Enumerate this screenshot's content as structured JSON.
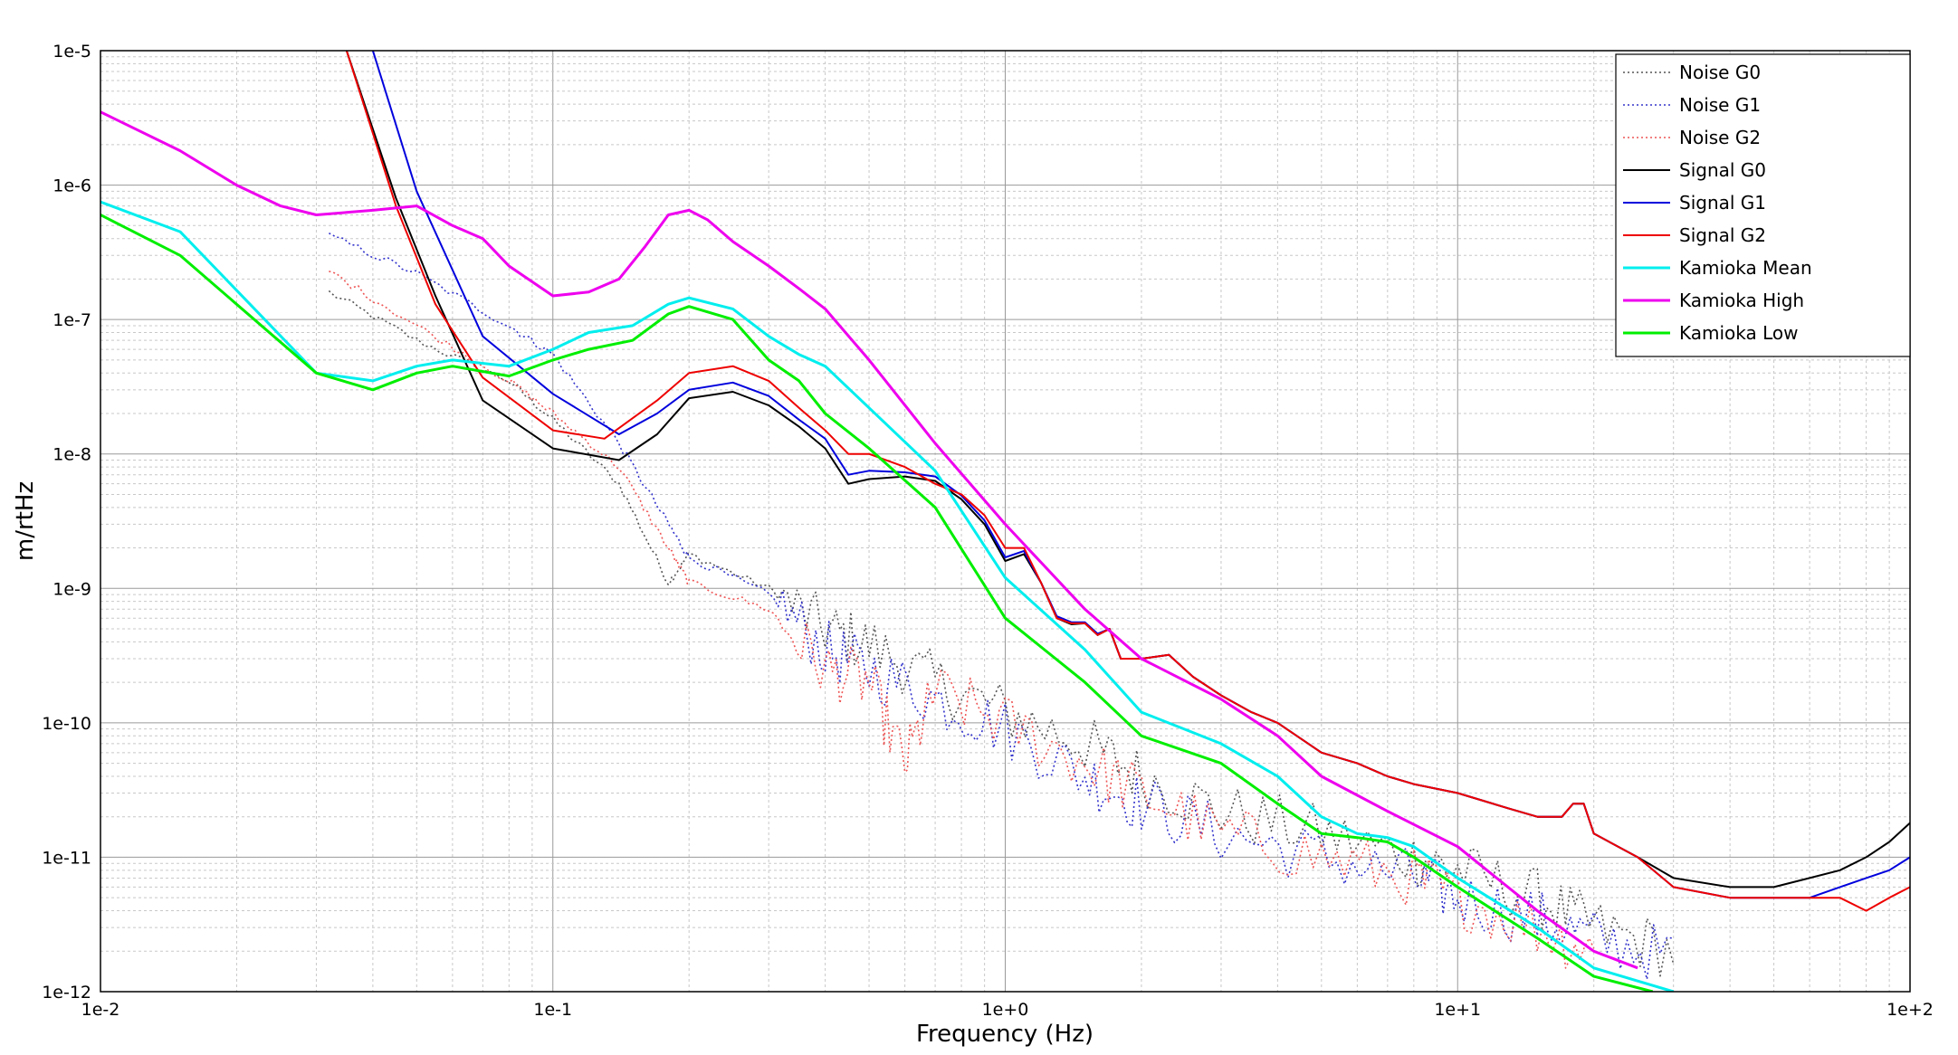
{
  "chart_data": {
    "type": "line",
    "title": "",
    "xlabel": "Frequency (Hz)",
    "ylabel": "m/rtHz",
    "xscale": "log",
    "yscale": "log",
    "xlim": [
      0.01,
      100
    ],
    "ylim": [
      1e-12,
      1e-05
    ],
    "grid": true,
    "legend_position": "top-right",
    "x_ticks": [
      {
        "value": 0.01,
        "label": "1e-2"
      },
      {
        "value": 0.1,
        "label": "1e-1"
      },
      {
        "value": 1,
        "label": "1e+0"
      },
      {
        "value": 10,
        "label": "1e+1"
      },
      {
        "value": 100,
        "label": "1e+2"
      }
    ],
    "y_ticks": [
      {
        "value": 1e-12,
        "label": "1e-12"
      },
      {
        "value": 1e-11,
        "label": "1e-11"
      },
      {
        "value": 1e-10,
        "label": "1e-10"
      },
      {
        "value": 1e-09,
        "label": "1e-9"
      },
      {
        "value": 1e-08,
        "label": "1e-8"
      },
      {
        "value": 1e-07,
        "label": "1e-7"
      },
      {
        "value": 1e-06,
        "label": "1e-6"
      },
      {
        "value": 1e-05,
        "label": "1e-5"
      }
    ],
    "series": [
      {
        "name": "Noise G0",
        "color": "#555555",
        "style": "dotted",
        "noisy": true,
        "x": [
          0.032,
          0.05,
          0.08,
          0.1,
          0.14,
          0.18,
          0.2,
          0.3,
          0.4,
          0.5,
          0.7,
          1,
          1.5,
          2,
          3,
          5,
          8,
          10,
          15,
          20,
          30
        ],
        "y": [
          1.6e-07,
          7e-08,
          3.5e-08,
          1.8e-08,
          6e-09,
          1.1e-09,
          1.8e-09,
          1e-09,
          5e-10,
          3.8e-10,
          2e-10,
          1.2e-10,
          7e-11,
          4e-11,
          2.2e-11,
          1.5e-11,
          1e-11,
          8e-12,
          5e-12,
          3e-12,
          2e-12
        ]
      },
      {
        "name": "Noise G1",
        "color": "#3333cc",
        "style": "dotted",
        "noisy": true,
        "x": [
          0.032,
          0.05,
          0.08,
          0.1,
          0.14,
          0.18,
          0.2,
          0.3,
          0.4,
          0.5,
          0.7,
          1,
          1.5,
          2,
          3,
          5,
          8,
          10,
          15,
          20,
          30
        ],
        "y": [
          4.2e-07,
          2.2e-07,
          9e-08,
          5.5e-08,
          1.2e-08,
          3e-09,
          1.7e-09,
          9e-10,
          3.5e-10,
          2.5e-10,
          1.5e-10,
          9e-11,
          4e-11,
          2.5e-11,
          1.5e-11,
          1e-11,
          7e-12,
          5e-12,
          3.5e-12,
          2.5e-12,
          1.8e-12
        ]
      },
      {
        "name": "Noise G2",
        "color": "#ee5555",
        "style": "dotted",
        "noisy": true,
        "x": [
          0.032,
          0.05,
          0.08,
          0.1,
          0.14,
          0.18,
          0.2,
          0.3,
          0.4,
          0.5,
          0.6,
          0.7,
          1,
          1.5,
          2,
          3,
          5,
          8,
          10,
          15,
          20
        ],
        "y": [
          2.3e-07,
          9e-08,
          3.5e-08,
          2e-08,
          8e-09,
          2e-09,
          1.1e-09,
          7e-10,
          2.5e-10,
          2e-10,
          5e-11,
          1.7e-10,
          1e-10,
          5e-11,
          3e-11,
          1.5e-11,
          1e-11,
          7e-12,
          5e-12,
          3e-12,
          2e-12
        ]
      },
      {
        "name": "Signal G0",
        "color": "#000000",
        "style": "solid",
        "noisy": false,
        "x": [
          0.035,
          0.045,
          0.055,
          0.07,
          0.1,
          0.14,
          0.17,
          0.2,
          0.25,
          0.3,
          0.35,
          0.4,
          0.45,
          0.5,
          0.6,
          0.7,
          0.8,
          0.9,
          1.0,
          1.1,
          1.2,
          1.3,
          1.4,
          1.5,
          1.6,
          1.7,
          1.8,
          2.0,
          2.3,
          2.6,
          3,
          3.5,
          4,
          5,
          6,
          7,
          8,
          10,
          13,
          15,
          17,
          18,
          19,
          20,
          25,
          30,
          40,
          50,
          60,
          70,
          80,
          90,
          100
        ],
        "y": [
          1e-05,
          8e-07,
          1.5e-07,
          2.5e-08,
          1.1e-08,
          9e-09,
          1.4e-08,
          2.6e-08,
          2.9e-08,
          2.3e-08,
          1.6e-08,
          1.1e-08,
          6e-09,
          6.5e-09,
          6.8e-09,
          6.3e-09,
          4.6e-09,
          3e-09,
          1.6e-09,
          1.8e-09,
          1.1e-09,
          6e-10,
          5.4e-10,
          5.5e-10,
          4.5e-10,
          5e-10,
          3e-10,
          3e-10,
          3.2e-10,
          2.2e-10,
          1.6e-10,
          1.2e-10,
          1e-10,
          6e-11,
          5e-11,
          4e-11,
          3.5e-11,
          3e-11,
          2.3e-11,
          2e-11,
          2e-11,
          2.5e-11,
          2.5e-11,
          1.5e-11,
          1e-11,
          7e-12,
          6e-12,
          6e-12,
          7e-12,
          8e-12,
          1e-11,
          1.3e-11,
          1.8e-11
        ]
      },
      {
        "name": "Signal G1",
        "color": "#0000dd",
        "style": "solid",
        "noisy": false,
        "x": [
          0.04,
          0.05,
          0.07,
          0.1,
          0.14,
          0.17,
          0.2,
          0.25,
          0.3,
          0.35,
          0.4,
          0.45,
          0.5,
          0.6,
          0.7,
          0.8,
          0.9,
          1.0,
          1.1,
          1.2,
          1.3,
          1.4,
          1.5,
          1.6,
          1.7,
          1.8,
          2.0,
          2.3,
          2.6,
          3,
          3.5,
          4,
          5,
          6,
          7,
          8,
          10,
          13,
          15,
          17,
          18,
          19,
          20,
          25,
          30,
          40,
          50,
          60,
          70,
          80,
          90,
          100
        ],
        "y": [
          1e-05,
          9e-07,
          7.5e-08,
          2.8e-08,
          1.4e-08,
          2e-08,
          3e-08,
          3.4e-08,
          2.7e-08,
          1.8e-08,
          1.3e-08,
          7e-09,
          7.5e-09,
          7.3e-09,
          6.8e-09,
          4.9e-09,
          3.2e-09,
          1.7e-09,
          1.9e-09,
          1.1e-09,
          6.2e-10,
          5.6e-10,
          5.6e-10,
          4.6e-10,
          5e-10,
          3e-10,
          3e-10,
          3.2e-10,
          2.2e-10,
          1.6e-10,
          1.2e-10,
          1e-10,
          6e-11,
          5e-11,
          4e-11,
          3.5e-11,
          3e-11,
          2.3e-11,
          2e-11,
          2e-11,
          2.5e-11,
          2.5e-11,
          1.5e-11,
          1e-11,
          6e-12,
          5e-12,
          5e-12,
          5e-12,
          6e-12,
          7e-12,
          8e-12,
          1e-11
        ]
      },
      {
        "name": "Signal G2",
        "color": "#ee0000",
        "style": "solid",
        "noisy": false,
        "x": [
          0.035,
          0.045,
          0.055,
          0.07,
          0.1,
          0.13,
          0.17,
          0.2,
          0.25,
          0.3,
          0.35,
          0.4,
          0.45,
          0.5,
          0.6,
          0.7,
          0.8,
          0.9,
          1.0,
          1.1,
          1.2,
          1.3,
          1.4,
          1.5,
          1.6,
          1.7,
          1.8,
          2.0,
          2.3,
          2.6,
          3,
          3.5,
          4,
          5,
          6,
          7,
          8,
          10,
          13,
          15,
          17,
          18,
          19,
          20,
          25,
          30,
          40,
          50,
          60,
          70,
          80,
          90,
          100
        ],
        "y": [
          1e-05,
          7e-07,
          1.3e-07,
          3.7e-08,
          1.5e-08,
          1.3e-08,
          2.5e-08,
          4e-08,
          4.5e-08,
          3.5e-08,
          2.2e-08,
          1.5e-08,
          1e-08,
          1e-08,
          8e-09,
          6e-09,
          5e-09,
          3.5e-09,
          2e-09,
          2e-09,
          1.1e-09,
          6e-10,
          5.5e-10,
          5.5e-10,
          4.5e-10,
          5e-10,
          3e-10,
          3e-10,
          3.2e-10,
          2.2e-10,
          1.6e-10,
          1.2e-10,
          1e-10,
          6e-11,
          5e-11,
          4e-11,
          3.5e-11,
          3e-11,
          2.3e-11,
          2e-11,
          2e-11,
          2.5e-11,
          2.5e-11,
          1.5e-11,
          1e-11,
          6e-12,
          5e-12,
          5e-12,
          5e-12,
          5e-12,
          4e-12,
          5e-12,
          6e-12
        ]
      },
      {
        "name": "Kamioka Mean",
        "color": "#00eeee",
        "style": "solid",
        "noisy": false,
        "x": [
          0.01,
          0.015,
          0.03,
          0.04,
          0.05,
          0.06,
          0.08,
          0.1,
          0.12,
          0.15,
          0.18,
          0.2,
          0.25,
          0.3,
          0.35,
          0.4,
          0.5,
          0.7,
          1.0,
          1.5,
          2,
          3,
          4,
          5,
          6,
          7,
          8,
          10,
          15,
          20,
          30
        ],
        "y": [
          7.5e-07,
          4.5e-07,
          4e-08,
          3.5e-08,
          4.5e-08,
          5e-08,
          4.5e-08,
          6e-08,
          8e-08,
          9e-08,
          1.3e-07,
          1.45e-07,
          1.2e-07,
          7.5e-08,
          5.5e-08,
          4.5e-08,
          2.2e-08,
          7.5e-09,
          1.2e-09,
          3.5e-10,
          1.2e-10,
          7e-11,
          4e-11,
          2e-11,
          1.5e-11,
          1.4e-11,
          1.2e-11,
          7e-12,
          3e-12,
          1.5e-12,
          1e-12
        ]
      },
      {
        "name": "Kamioka High",
        "color": "#ee00ee",
        "style": "solid",
        "noisy": false,
        "x": [
          0.01,
          0.015,
          0.02,
          0.025,
          0.03,
          0.04,
          0.05,
          0.06,
          0.07,
          0.08,
          0.1,
          0.12,
          0.14,
          0.16,
          0.18,
          0.2,
          0.22,
          0.25,
          0.3,
          0.35,
          0.4,
          0.5,
          0.7,
          1.0,
          1.5,
          2,
          3,
          4,
          5,
          7,
          10,
          15,
          20,
          25
        ],
        "y": [
          3.5e-06,
          1.8e-06,
          1e-06,
          7e-07,
          6e-07,
          6.5e-07,
          7e-07,
          5e-07,
          4e-07,
          2.5e-07,
          1.5e-07,
          1.6e-07,
          2e-07,
          3.5e-07,
          6e-07,
          6.5e-07,
          5.5e-07,
          3.8e-07,
          2.5e-07,
          1.7e-07,
          1.2e-07,
          5e-08,
          1.2e-08,
          3e-09,
          7e-10,
          3e-10,
          1.5e-10,
          8e-11,
          4e-11,
          2.2e-11,
          1.2e-11,
          4e-12,
          2e-12,
          1.5e-12
        ]
      },
      {
        "name": "Kamioka Low",
        "color": "#00ee00",
        "style": "solid",
        "noisy": false,
        "x": [
          0.01,
          0.015,
          0.03,
          0.04,
          0.05,
          0.06,
          0.08,
          0.1,
          0.12,
          0.15,
          0.18,
          0.2,
          0.25,
          0.3,
          0.35,
          0.4,
          0.5,
          0.7,
          1.0,
          1.5,
          2,
          3,
          4,
          5,
          6,
          7,
          8,
          10,
          15,
          20,
          27
        ],
        "y": [
          6e-07,
          3e-07,
          4e-08,
          3e-08,
          4e-08,
          4.5e-08,
          3.8e-08,
          5e-08,
          6e-08,
          7e-08,
          1.1e-07,
          1.25e-07,
          1e-07,
          5e-08,
          3.5e-08,
          2e-08,
          1.1e-08,
          4e-09,
          6e-10,
          2e-10,
          8e-11,
          5e-11,
          2.5e-11,
          1.5e-11,
          1.4e-11,
          1.3e-11,
          1e-11,
          6e-12,
          2.5e-12,
          1.3e-12,
          1e-12
        ]
      }
    ]
  }
}
